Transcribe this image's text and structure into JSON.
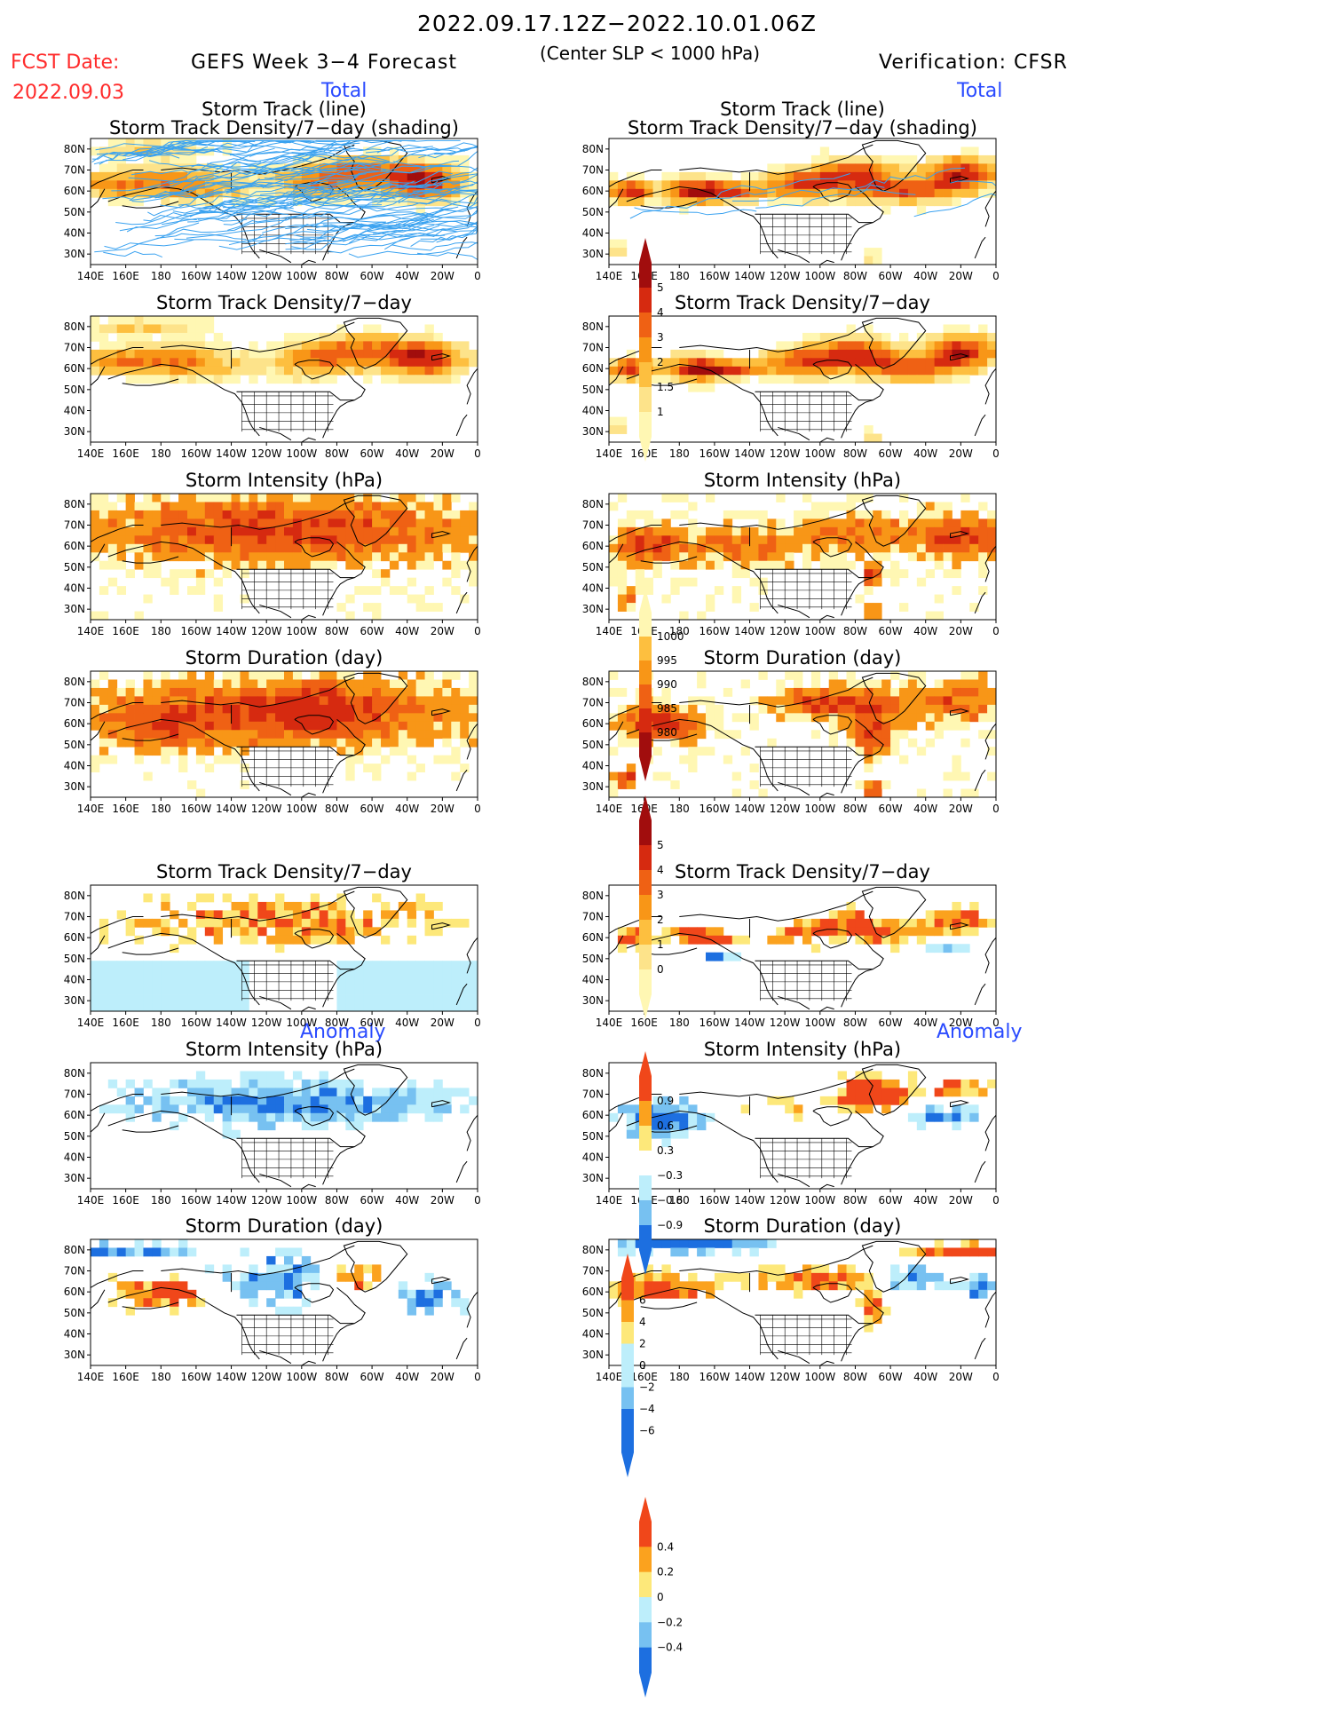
{
  "header": {
    "title": "2022.09.17.12Z−2022.10.01.06Z",
    "subtitle": "(Center SLP < 1000 hPa)",
    "fcst_label": "FCST Date:",
    "fcst_date": "2022.09.03",
    "left_heading": "GEFS Week 3−4 Forecast",
    "right_heading": "Verification: CFSR",
    "left_section_total": "Total",
    "right_section_total": "Total",
    "left_section_anomaly": "Anomaly",
    "right_section_anomaly": "Anomaly"
  },
  "panel_titles": {
    "track": [
      "Storm Track (line)",
      "Storm Track Density/7−day (shading)"
    ],
    "density": "Storm Track Density/7−day",
    "intensity": "Storm Intensity (hPa)",
    "duration": "Storm Duration (day)"
  },
  "axes": {
    "lon_labels": [
      "140E",
      "160E",
      "180",
      "160W",
      "140W",
      "120W",
      "100W",
      "80W",
      "60W",
      "40W",
      "20W",
      "0"
    ],
    "lat_labels": [
      "80N",
      "70N",
      "60N",
      "50N",
      "40N",
      "30N"
    ]
  },
  "colors": {
    "warm": [
      "#fff7b3",
      "#fde38a",
      "#fdbf3f",
      "#f89617",
      "#ef6114",
      "#d62a10",
      "#a10d0d"
    ],
    "anom_warm": [
      "#fde87a",
      "#fba21e",
      "#f0471a"
    ],
    "anom_cool": [
      "#bdeefb",
      "#77c1f1",
      "#1d6fe0"
    ],
    "track_line": "#3aa2f0"
  },
  "colorbars": {
    "density_total": [
      "5",
      "4",
      "3",
      "2",
      "1.5",
      "1"
    ],
    "intensity_total": [
      "1000",
      "995",
      "990",
      "985",
      "980"
    ],
    "duration_total": [
      "5",
      "4",
      "3",
      "2",
      "1",
      "0"
    ],
    "density_anom": [
      "0.9",
      "0.6",
      "0.3",
      "−0.3",
      "−0.6",
      "−0.9"
    ],
    "intensity_anom": [
      "6",
      "4",
      "2",
      "0",
      "−2",
      "−4",
      "−6"
    ],
    "duration_anom": [
      "0.4",
      "0.2",
      "0",
      "−0.2",
      "−0.4"
    ]
  },
  "chart_data": [
    {
      "type": "heatmap",
      "panel": "GEFS storm track + density",
      "lon": "140E-0",
      "lat": "25N-85N"
    },
    {
      "type": "heatmap",
      "panel": "CFSR storm track + density",
      "lon": "140E-0",
      "lat": "25N-85N"
    },
    {
      "type": "heatmap",
      "panel": "GEFS density total"
    },
    {
      "type": "heatmap",
      "panel": "CFSR density total"
    },
    {
      "type": "heatmap",
      "panel": "GEFS intensity total",
      "units": "hPa"
    },
    {
      "type": "heatmap",
      "panel": "CFSR intensity total",
      "units": "hPa"
    },
    {
      "type": "heatmap",
      "panel": "GEFS duration total",
      "units": "day"
    },
    {
      "type": "heatmap",
      "panel": "CFSR duration total",
      "units": "day"
    },
    {
      "type": "heatmap",
      "panel": "GEFS density anomaly"
    },
    {
      "type": "heatmap",
      "panel": "CFSR density anomaly"
    },
    {
      "type": "heatmap",
      "panel": "GEFS intensity anomaly",
      "units": "hPa"
    },
    {
      "type": "heatmap",
      "panel": "CFSR intensity anomaly",
      "units": "hPa"
    },
    {
      "type": "heatmap",
      "panel": "GEFS duration anomaly",
      "units": "day"
    },
    {
      "type": "heatmap",
      "panel": "CFSR duration anomaly",
      "units": "day"
    }
  ]
}
